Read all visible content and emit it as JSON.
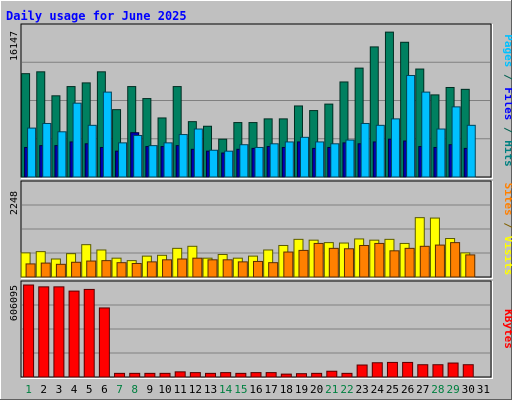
{
  "chart_data": {
    "type": "bar",
    "title": "Daily usage for June 2025",
    "x": [
      "1",
      "2",
      "3",
      "4",
      "5",
      "6",
      "7",
      "8",
      "9",
      "10",
      "11",
      "12",
      "13",
      "14",
      "15",
      "16",
      "17",
      "18",
      "19",
      "20",
      "21",
      "22",
      "23",
      "24",
      "25",
      "26",
      "27",
      "28",
      "29",
      "30",
      "31"
    ],
    "weekend_days": [
      "1",
      "7",
      "8",
      "14",
      "15",
      "21",
      "22",
      "28",
      "29"
    ],
    "panels": [
      {
        "id": "hits",
        "y_tick_label": "16147",
        "ymax": 16147,
        "labels": [
          {
            "text": "Pages",
            "color": "#00c0ff"
          },
          {
            "text": " / ",
            "color": "#006050"
          },
          {
            "text": "Files",
            "color": "#0000ff"
          },
          {
            "text": " / ",
            "color": "#006050"
          },
          {
            "text": "Hits",
            "color": "#008080"
          }
        ],
        "series": [
          {
            "name": "Hits",
            "color": "#008060",
            "values": [
              11200,
              11400,
              8800,
              9800,
              10200,
              11400,
              7300,
              9800,
              8500,
              6400,
              9800,
              6000,
              5500,
              4100,
              5900,
              5900,
              6300,
              6300,
              7700,
              7200,
              7900,
              10300,
              11800,
              14100,
              15700,
              14600,
              11700,
              8900,
              9700,
              9500,
              null
            ]
          },
          {
            "name": "Files",
            "color": "#0000b0",
            "values": [
              3200,
              3400,
              3400,
              3800,
              3600,
              3200,
              2800,
              4800,
              3300,
              3300,
              3400,
              3000,
              2800,
              2600,
              3000,
              3100,
              3300,
              3200,
              3800,
              3100,
              3200,
              3700,
              3600,
              3800,
              4100,
              3900,
              3300,
              3200,
              3500,
              3100,
              null
            ]
          },
          {
            "name": "Pages",
            "color": "#00c0ff",
            "values": [
              5300,
              5800,
              4900,
              8000,
              5600,
              9200,
              3700,
              4500,
              3400,
              3700,
              4600,
              5200,
              2900,
              2800,
              3500,
              3200,
              3600,
              3800,
              4300,
              3800,
              3600,
              4000,
              5800,
              5600,
              6300,
              11000,
              9200,
              5200,
              7600,
              5600,
              null
            ]
          }
        ]
      },
      {
        "id": "visits",
        "y_tick_label": "2248",
        "ymax": 2248,
        "labels": [
          {
            "text": "Sites",
            "color": "#ff8000"
          },
          {
            "text": " / ",
            "color": "#806000"
          },
          {
            "text": "Visits",
            "color": "#ffff00"
          }
        ],
        "series": [
          {
            "name": "Visits",
            "color": "#ffff00",
            "values": [
              590,
              620,
              440,
              570,
              790,
              660,
              460,
              400,
              510,
              530,
              700,
              750,
              460,
              550,
              460,
              510,
              660,
              770,
              920,
              900,
              840,
              830,
              930,
              900,
              920,
              820,
              1450,
              1440,
              940,
              590,
              null
            ]
          },
          {
            "name": "Sites",
            "color": "#ff8000",
            "values": [
              320,
              340,
              310,
              360,
              390,
              400,
              350,
              330,
              370,
              420,
              440,
              460,
              420,
              420,
              370,
              380,
              350,
              610,
              650,
              820,
              700,
              690,
              770,
              820,
              640,
              700,
              750,
              780,
              840,
              540,
              null
            ]
          }
        ]
      },
      {
        "id": "kbytes",
        "y_tick_label": "606095",
        "ymax": 606095,
        "labels": [
          {
            "text": "KBytes",
            "color": "#ff0000"
          }
        ],
        "series": [
          {
            "name": "KBytes",
            "color": "#ff0000",
            "values": [
              606095,
              594000,
              594000,
              566000,
              577000,
              455000,
              24000,
              24000,
              24000,
              24000,
              34000,
              29000,
              24000,
              29000,
              24000,
              29000,
              29000,
              19000,
              22000,
              24000,
              38000,
              24000,
              79000,
              94000,
              96000,
              96000,
              81000,
              81000,
              92000,
              81000,
              null
            ]
          }
        ]
      }
    ],
    "grid": true
  }
}
